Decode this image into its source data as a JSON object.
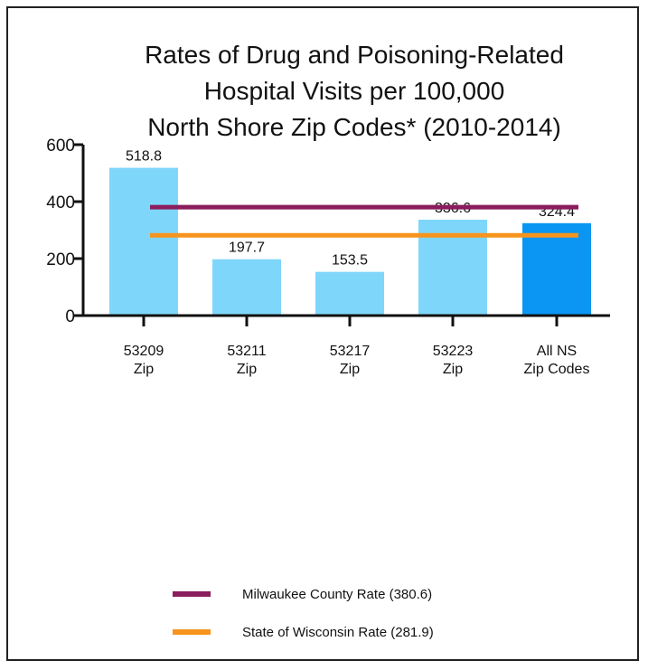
{
  "chart_data": {
    "type": "bar",
    "title": [
      "Rates of Drug and Poisoning-Related",
      "Hospital Visits per 100,000",
      "North Shore Zip Codes* (2010-2014)"
    ],
    "categories": [
      [
        "53209",
        "Zip"
      ],
      [
        "53211",
        "Zip"
      ],
      [
        "53217",
        "Zip"
      ],
      [
        "53223",
        "Zip"
      ],
      [
        "All NS",
        "Zip Codes"
      ]
    ],
    "values": [
      518.8,
      197.7,
      153.5,
      336.6,
      324.4
    ],
    "value_labels": [
      "518.8",
      "197.7",
      "153.5",
      "336.6",
      "324.4"
    ],
    "bar_colors": [
      "#7fd6fb",
      "#7fd6fb",
      "#7fd6fb",
      "#7fd6fb",
      "#0a96f2"
    ],
    "ylim": [
      0,
      600
    ],
    "yticks": [
      0,
      200,
      400,
      600
    ],
    "reference_lines": [
      {
        "name": "Milwaukee County Rate (380.6)",
        "value": 380.6,
        "color": "#8b1c5d"
      },
      {
        "name": "State of Wisconsin Rate (281.9)",
        "value": 281.9,
        "color": "#f7941d"
      }
    ],
    "legend_position": "bottom"
  }
}
